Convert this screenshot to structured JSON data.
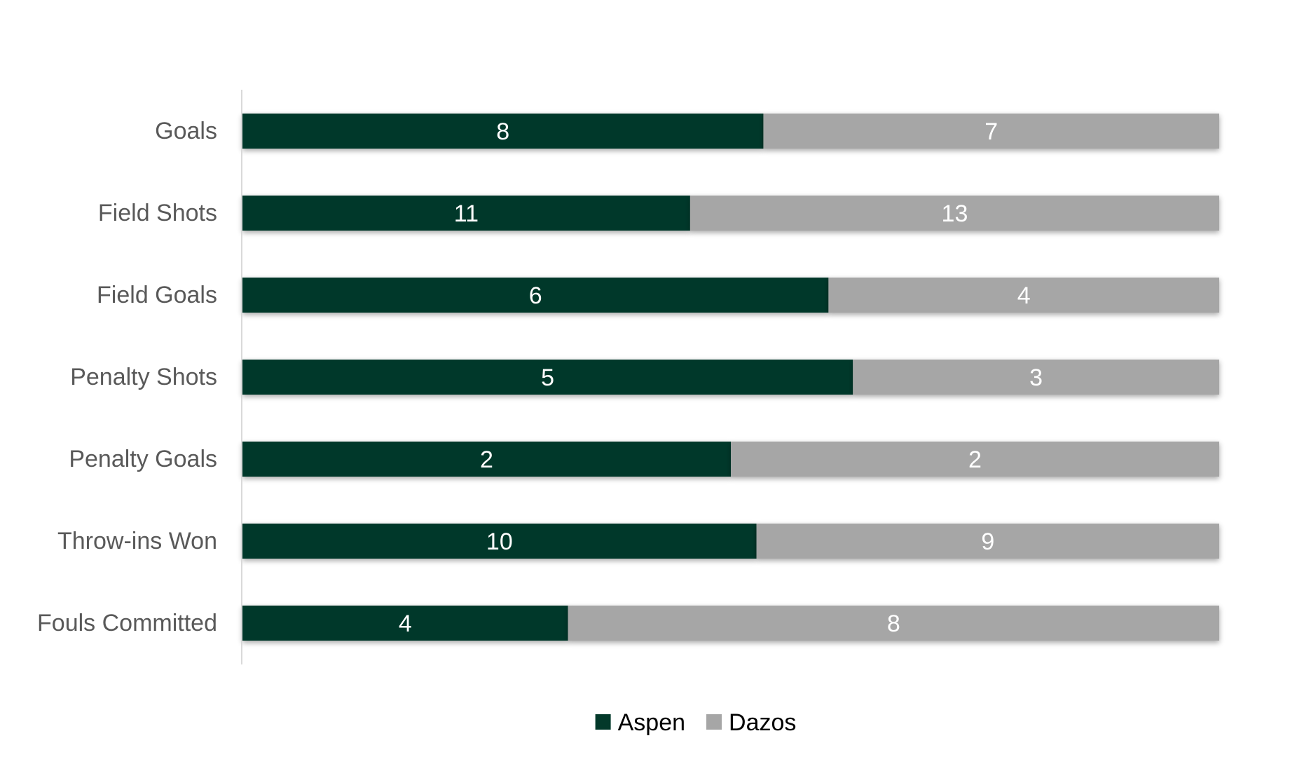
{
  "chart_data": {
    "type": "bar",
    "orientation": "horizontal",
    "stacking": "percent",
    "categories": [
      "Goals",
      "Field Shots",
      "Field Goals",
      "Penalty Shots",
      "Penalty Goals",
      "Throw-ins Won",
      "Fouls Committed"
    ],
    "series": [
      {
        "name": "Aspen",
        "values": [
          8,
          11,
          6,
          5,
          2,
          10,
          4
        ],
        "color": "#03392a",
        "label_color": "#ffffff"
      },
      {
        "name": "Dazos",
        "values": [
          7,
          13,
          4,
          3,
          2,
          9,
          8
        ],
        "color": "#a6a6a6",
        "label_color": "#ffffff"
      }
    ],
    "title": "",
    "xlabel": "",
    "ylabel": "",
    "grid": false,
    "legend": "bottom",
    "data_labels": true,
    "category_label_color": "#595959",
    "axis_color": "#d9d9d9"
  }
}
